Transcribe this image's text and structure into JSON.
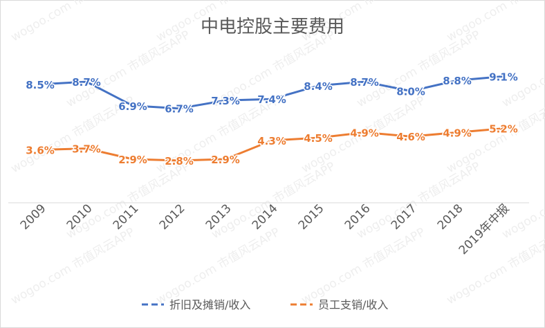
{
  "watermark": "wogoo.com  市值风云APP",
  "chart_data": {
    "type": "line",
    "title": "中电控股主要费用",
    "categories": [
      "2009",
      "2010",
      "2011",
      "2012",
      "2013",
      "2014",
      "2015",
      "2016",
      "2017",
      "2018",
      "2019年中报"
    ],
    "series": [
      {
        "name": "折旧及摊销/收入",
        "color": "#4472c4",
        "values": [
          8.5,
          8.7,
          6.9,
          6.7,
          7.3,
          7.4,
          8.4,
          8.7,
          8.0,
          8.8,
          9.1
        ],
        "labels": [
          "8.5%",
          "8.7%",
          "6.9%",
          "6.7%",
          "7.3%",
          "7.4%",
          "8.4%",
          "8.7%",
          "8.0%",
          "8.8%",
          "9.1%"
        ]
      },
      {
        "name": "员工支销/收入",
        "color": "#ed7d31",
        "values": [
          3.6,
          3.7,
          2.9,
          2.8,
          2.9,
          4.3,
          4.5,
          4.9,
          4.6,
          4.9,
          5.2
        ],
        "labels": [
          "3.6%",
          "3.7%",
          "2.9%",
          "2.8%",
          "2.9%",
          "4.3%",
          "4.5%",
          "4.9%",
          "4.6%",
          "4.9%",
          "5.2%"
        ]
      }
    ],
    "legend_position": "bottom",
    "grid": false
  }
}
